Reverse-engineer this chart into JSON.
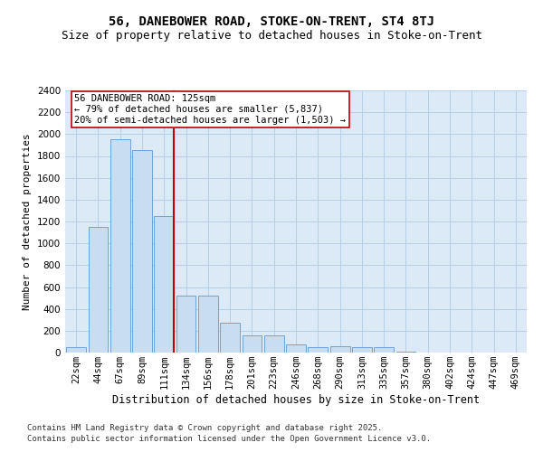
{
  "title": "56, DANEBOWER ROAD, STOKE-ON-TRENT, ST4 8TJ",
  "subtitle": "Size of property relative to detached houses in Stoke-on-Trent",
  "xlabel": "Distribution of detached houses by size in Stoke-on-Trent",
  "ylabel": "Number of detached properties",
  "categories": [
    "22sqm",
    "44sqm",
    "67sqm",
    "89sqm",
    "111sqm",
    "134sqm",
    "156sqm",
    "178sqm",
    "201sqm",
    "223sqm",
    "246sqm",
    "268sqm",
    "290sqm",
    "313sqm",
    "335sqm",
    "357sqm",
    "380sqm",
    "402sqm",
    "424sqm",
    "447sqm",
    "469sqm"
  ],
  "values": [
    50,
    1150,
    1950,
    1850,
    1250,
    520,
    520,
    275,
    160,
    160,
    75,
    50,
    55,
    50,
    50,
    8,
    4,
    3,
    2,
    1,
    1
  ],
  "bar_color": "#c9ddf0",
  "bar_edge_color": "#5b9bd5",
  "grid_color": "#b8cfe8",
  "bg_color": "#dce9f7",
  "fig_color": "#ffffff",
  "vline_color": "#c00000",
  "vline_x_idx": 4.43,
  "annotation_text": "56 DANEBOWER ROAD: 125sqm\n← 79% of detached houses are smaller (5,837)\n20% of semi-detached houses are larger (1,503) →",
  "annotation_box_color": "#c00000",
  "ylim": [
    0,
    2400
  ],
  "yticks": [
    0,
    200,
    400,
    600,
    800,
    1000,
    1200,
    1400,
    1600,
    1800,
    2000,
    2200,
    2400
  ],
  "footnote1": "Contains HM Land Registry data © Crown copyright and database right 2025.",
  "footnote2": "Contains public sector information licensed under the Open Government Licence v3.0.",
  "title_fontsize": 10,
  "subtitle_fontsize": 9,
  "xlabel_fontsize": 8.5,
  "ylabel_fontsize": 8,
  "tick_fontsize": 7.5,
  "annotation_fontsize": 7.5,
  "footnote_fontsize": 6.5
}
